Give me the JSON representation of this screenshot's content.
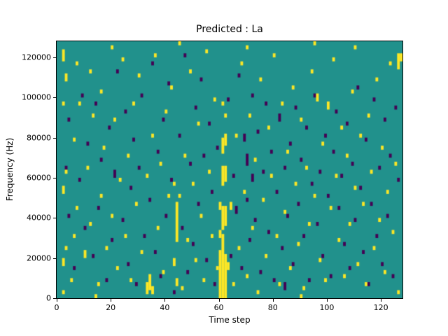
{
  "chart_data": {
    "type": "heatmap",
    "title": "Predicted : La",
    "xlabel": "Time step",
    "ylabel": "Frequency (Hz)",
    "xlim": [
      0,
      128
    ],
    "ylim": [
      0,
      128000
    ],
    "xticks": [
      0,
      20,
      40,
      60,
      80,
      100,
      120
    ],
    "yticks": [
      0,
      20000,
      40000,
      60000,
      80000,
      100000,
      120000
    ],
    "grid": false,
    "legend": "none",
    "colors": {
      "background_value": "#21918c",
      "high_value": "#fde725",
      "low_value": "#440154",
      "spine": "#000000",
      "figure_background": "#ffffff"
    },
    "cell_encoding": "cells listed as [time_step, freq_kHz, run_length_bins]; each bin spans 2 kHz upward from freq_kHz",
    "cells": {
      "yellow": [
        [
          2,
          2,
          1
        ],
        [
          2,
          16,
          2
        ],
        [
          3,
          24,
          1
        ],
        [
          2,
          52,
          2
        ],
        [
          3,
          62,
          1
        ],
        [
          2,
          96,
          1
        ],
        [
          3,
          108,
          2
        ],
        [
          2,
          118,
          3
        ],
        [
          5,
          8,
          1
        ],
        [
          6,
          30,
          1
        ],
        [
          7,
          44,
          1
        ],
        [
          6,
          78,
          1
        ],
        [
          8,
          96,
          1
        ],
        [
          7,
          116,
          1
        ],
        [
          10,
          20,
          2
        ],
        [
          11,
          64,
          1
        ],
        [
          12,
          36,
          1
        ],
        [
          13,
          90,
          1
        ],
        [
          12,
          112,
          1
        ],
        [
          14,
          0,
          1
        ],
        [
          15,
          6,
          1
        ],
        [
          16,
          50,
          1
        ],
        [
          17,
          74,
          1
        ],
        [
          16,
          102,
          1
        ],
        [
          18,
          24,
          1
        ],
        [
          20,
          40,
          1
        ],
        [
          20,
          124,
          1
        ],
        [
          21,
          88,
          1
        ],
        [
          22,
          14,
          1
        ],
        [
          23,
          58,
          1
        ],
        [
          24,
          118,
          1
        ],
        [
          25,
          30,
          1
        ],
        [
          26,
          70,
          1
        ],
        [
          27,
          8,
          1
        ],
        [
          28,
          96,
          1
        ],
        [
          29,
          46,
          1
        ],
        [
          30,
          110,
          1
        ],
        [
          31,
          22,
          1
        ],
        [
          33,
          2,
          3
        ],
        [
          34,
          4,
          4
        ],
        [
          35,
          2,
          2
        ],
        [
          33,
          60,
          1
        ],
        [
          35,
          80,
          1
        ],
        [
          36,
          120,
          1
        ],
        [
          37,
          34,
          1
        ],
        [
          38,
          66,
          1
        ],
        [
          39,
          12,
          1
        ],
        [
          40,
          92,
          1
        ],
        [
          41,
          50,
          1
        ],
        [
          42,
          104,
          1
        ],
        [
          43,
          16,
          2
        ],
        [
          44,
          28,
          10
        ],
        [
          44,
          6,
          2
        ],
        [
          45,
          50,
          1
        ],
        [
          45,
          126,
          1
        ],
        [
          43,
          56,
          1
        ],
        [
          46,
          4,
          1
        ],
        [
          47,
          70,
          1
        ],
        [
          48,
          28,
          1
        ],
        [
          49,
          112,
          1
        ],
        [
          50,
          56,
          1
        ],
        [
          51,
          18,
          1
        ],
        [
          52,
          86,
          1
        ],
        [
          53,
          40,
          1
        ],
        [
          54,
          8,
          1
        ],
        [
          55,
          122,
          1
        ],
        [
          56,
          62,
          1
        ],
        [
          57,
          30,
          1
        ],
        [
          58,
          98,
          1
        ],
        [
          59,
          14,
          1
        ],
        [
          60,
          0,
          12
        ],
        [
          61,
          0,
          16
        ],
        [
          62,
          0,
          11
        ],
        [
          60,
          30,
          2
        ],
        [
          61,
          34,
          6
        ],
        [
          62,
          36,
          5
        ],
        [
          61,
          56,
          5
        ],
        [
          62,
          58,
          4
        ],
        [
          61,
          72,
          4
        ],
        [
          62,
          76,
          3
        ],
        [
          63,
          14,
          2
        ],
        [
          60,
          44,
          2
        ],
        [
          62,
          90,
          1
        ],
        [
          61,
          96,
          1
        ],
        [
          64,
          44,
          2
        ],
        [
          65,
          6,
          1
        ],
        [
          66,
          80,
          1
        ],
        [
          67,
          24,
          1
        ],
        [
          68,
          116,
          1
        ],
        [
          69,
          52,
          1
        ],
        [
          70,
          10,
          1
        ],
        [
          70,
          124,
          1
        ],
        [
          71,
          90,
          1
        ],
        [
          72,
          34,
          1
        ],
        [
          73,
          68,
          1
        ],
        [
          74,
          2,
          1
        ],
        [
          75,
          108,
          1
        ],
        [
          76,
          48,
          1
        ],
        [
          77,
          20,
          1
        ],
        [
          78,
          84,
          1
        ],
        [
          79,
          60,
          1
        ],
        [
          80,
          120,
          1
        ],
        [
          81,
          30,
          1
        ],
        [
          82,
          6,
          1
        ],
        [
          83,
          96,
          1
        ],
        [
          84,
          42,
          1
        ],
        [
          85,
          72,
          1
        ],
        [
          86,
          14,
          1
        ],
        [
          87,
          104,
          1
        ],
        [
          88,
          56,
          1
        ],
        [
          89,
          26,
          1
        ],
        [
          90,
          0,
          1
        ],
        [
          90,
          88,
          1
        ],
        [
          91,
          4,
          1
        ],
        [
          92,
          64,
          1
        ],
        [
          93,
          36,
          1
        ],
        [
          94,
          112,
          1
        ],
        [
          95,
          50,
          1
        ],
        [
          95,
          126,
          1
        ],
        [
          96,
          98,
          2
        ],
        [
          97,
          18,
          1
        ],
        [
          98,
          76,
          1
        ],
        [
          99,
          8,
          1
        ],
        [
          100,
          94,
          2
        ],
        [
          101,
          44,
          1
        ],
        [
          102,
          118,
          1
        ],
        [
          103,
          60,
          1
        ],
        [
          104,
          28,
          1
        ],
        [
          105,
          84,
          1
        ],
        [
          106,
          10,
          1
        ],
        [
          107,
          70,
          1
        ],
        [
          108,
          36,
          1
        ],
        [
          109,
          102,
          1
        ],
        [
          110,
          54,
          1
        ],
        [
          110,
          124,
          1
        ],
        [
          111,
          16,
          1
        ],
        [
          112,
          80,
          1
        ],
        [
          113,
          46,
          1
        ],
        [
          114,
          6,
          1
        ],
        [
          115,
          90,
          1
        ],
        [
          116,
          62,
          1
        ],
        [
          117,
          24,
          1
        ],
        [
          118,
          108,
          1
        ],
        [
          119,
          38,
          1
        ],
        [
          120,
          74,
          1
        ],
        [
          121,
          12,
          1
        ],
        [
          122,
          52,
          1
        ],
        [
          123,
          116,
          1
        ],
        [
          124,
          32,
          1
        ],
        [
          125,
          66,
          1
        ],
        [
          126,
          2,
          1
        ],
        [
          126,
          114,
          4
        ],
        [
          127,
          118,
          2
        ]
      ],
      "purple": [
        [
          4,
          40,
          1
        ],
        [
          3,
          64,
          1
        ],
        [
          4,
          88,
          1
        ],
        [
          6,
          14,
          1
        ],
        [
          8,
          58,
          1
        ],
        [
          9,
          100,
          1
        ],
        [
          10,
          34,
          1
        ],
        [
          11,
          76,
          1
        ],
        [
          13,
          20,
          1
        ],
        [
          14,
          96,
          1
        ],
        [
          15,
          44,
          1
        ],
        [
          16,
          68,
          1
        ],
        [
          18,
          8,
          1
        ],
        [
          19,
          84,
          1
        ],
        [
          20,
          28,
          1
        ],
        [
          21,
          60,
          2
        ],
        [
          22,
          112,
          1
        ],
        [
          24,
          38,
          1
        ],
        [
          25,
          92,
          1
        ],
        [
          26,
          16,
          1
        ],
        [
          27,
          54,
          1
        ],
        [
          28,
          78,
          1
        ],
        [
          29,
          6,
          1
        ],
        [
          30,
          64,
          1
        ],
        [
          31,
          100,
          1
        ],
        [
          32,
          30,
          1
        ],
        [
          34,
          48,
          1
        ],
        [
          35,
          116,
          1
        ],
        [
          36,
          22,
          1
        ],
        [
          37,
          72,
          1
        ],
        [
          38,
          10,
          1
        ],
        [
          39,
          88,
          1
        ],
        [
          40,
          40,
          1
        ],
        [
          41,
          106,
          1
        ],
        [
          42,
          58,
          1
        ],
        [
          43,
          2,
          1
        ],
        [
          45,
          80,
          1
        ],
        [
          46,
          34,
          1
        ],
        [
          47,
          120,
          1
        ],
        [
          48,
          12,
          1
        ],
        [
          49,
          66,
          1
        ],
        [
          50,
          26,
          1
        ],
        [
          51,
          94,
          1
        ],
        [
          52,
          46,
          1
        ],
        [
          53,
          108,
          1
        ],
        [
          54,
          70,
          1
        ],
        [
          55,
          18,
          1
        ],
        [
          56,
          86,
          1
        ],
        [
          57,
          52,
          1
        ],
        [
          58,
          6,
          1
        ],
        [
          59,
          74,
          1
        ],
        [
          63,
          98,
          1
        ],
        [
          64,
          20,
          1
        ],
        [
          65,
          60,
          1
        ],
        [
          66,
          42,
          2
        ],
        [
          67,
          110,
          1
        ],
        [
          68,
          14,
          1
        ],
        [
          69,
          78,
          2
        ],
        [
          70,
          48,
          1
        ],
        [
          70,
          66,
          3
        ],
        [
          71,
          28,
          1
        ],
        [
          72,
          100,
          1
        ],
        [
          72,
          58,
          2
        ],
        [
          73,
          38,
          1
        ],
        [
          74,
          82,
          1
        ],
        [
          75,
          12,
          1
        ],
        [
          76,
          62,
          1
        ],
        [
          77,
          96,
          1
        ],
        [
          78,
          32,
          1
        ],
        [
          79,
          72,
          1
        ],
        [
          80,
          8,
          1
        ],
        [
          81,
          52,
          1
        ],
        [
          82,
          88,
          2
        ],
        [
          83,
          24,
          1
        ],
        [
          84,
          64,
          1
        ],
        [
          84,
          4,
          2
        ],
        [
          85,
          40,
          1
        ],
        [
          86,
          76,
          1
        ],
        [
          87,
          16,
          1
        ],
        [
          88,
          94,
          1
        ],
        [
          89,
          46,
          1
        ],
        [
          90,
          68,
          1
        ],
        [
          91,
          30,
          1
        ],
        [
          92,
          84,
          1
        ],
        [
          93,
          8,
          1
        ],
        [
          94,
          56,
          1
        ],
        [
          95,
          100,
          1
        ],
        [
          96,
          36,
          1
        ],
        [
          97,
          62,
          1
        ],
        [
          98,
          20,
          1
        ],
        [
          99,
          80,
          1
        ],
        [
          100,
          50,
          1
        ],
        [
          101,
          10,
          1
        ],
        [
          102,
          72,
          1
        ],
        [
          103,
          92,
          1
        ],
        [
          104,
          44,
          1
        ],
        [
          105,
          60,
          1
        ],
        [
          106,
          26,
          1
        ],
        [
          107,
          86,
          1
        ],
        [
          108,
          14,
          1
        ],
        [
          109,
          66,
          1
        ],
        [
          110,
          38,
          1
        ],
        [
          111,
          104,
          1
        ],
        [
          112,
          54,
          1
        ],
        [
          113,
          22,
          1
        ],
        [
          114,
          78,
          1
        ],
        [
          115,
          6,
          1
        ],
        [
          116,
          46,
          1
        ],
        [
          117,
          98,
          1
        ],
        [
          118,
          30,
          1
        ],
        [
          119,
          64,
          1
        ],
        [
          120,
          16,
          1
        ],
        [
          121,
          88,
          1
        ],
        [
          122,
          40,
          1
        ],
        [
          123,
          70,
          1
        ],
        [
          124,
          10,
          1
        ],
        [
          125,
          94,
          1
        ],
        [
          126,
          58,
          1
        ]
      ]
    }
  }
}
